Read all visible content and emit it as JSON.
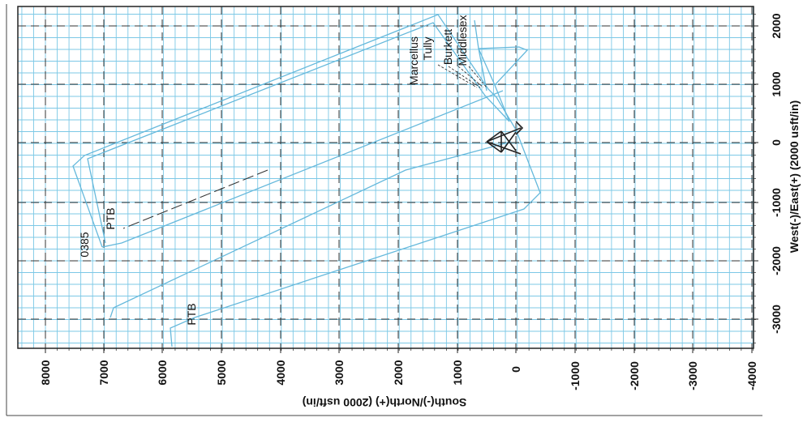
{
  "plot": {
    "north_axis": {
      "title": "South(-)/North(+) (2000 usft/in)",
      "ticks": [
        "8000",
        "7000",
        "6000",
        "5000",
        "4000",
        "3000",
        "2000",
        "1000",
        "0",
        "-1000",
        "-2000",
        "-3000",
        "-4000"
      ]
    },
    "east_axis": {
      "title": "West(-)/East(+) (2000 usft/in)",
      "ticks": [
        "2000",
        "1000",
        "0",
        "-1000",
        "-2000",
        "-3000"
      ]
    },
    "formation_labels": [
      "Marcellus",
      "Tully",
      "Burkett",
      "Middlesex"
    ],
    "well_labels": {
      "ptb_upper": "PTB",
      "ptb_lower": "PTB",
      "well_id": "0385"
    },
    "line_colors": {
      "grid": "#7cc8e6",
      "well_path": "#66b9dc",
      "dark": "#222222"
    }
  },
  "chart_data": {
    "type": "line",
    "xlabel": "South(-)/North(+) (2000 usft/in)",
    "ylabel": "West(-)/East(+) (2000 usft/in)",
    "xlim": [
      -4000,
      8500
    ],
    "ylim": [
      -3500,
      2200
    ],
    "series": [
      {
        "values": [
          [
            0,
            0
          ],
          [
            300,
            900
          ],
          [
            600,
            1100
          ],
          [
            7000,
            -1500
          ]
        ]
      },
      {
        "values": [
          [
            0,
            0
          ],
          [
            -300,
            -900
          ],
          [
            6500,
            -3300
          ]
        ]
      },
      {
        "values": [
          [
            100,
            1600
          ],
          [
            7500,
            -300
          ],
          [
            5800,
            -3300
          ]
        ]
      }
    ]
  }
}
